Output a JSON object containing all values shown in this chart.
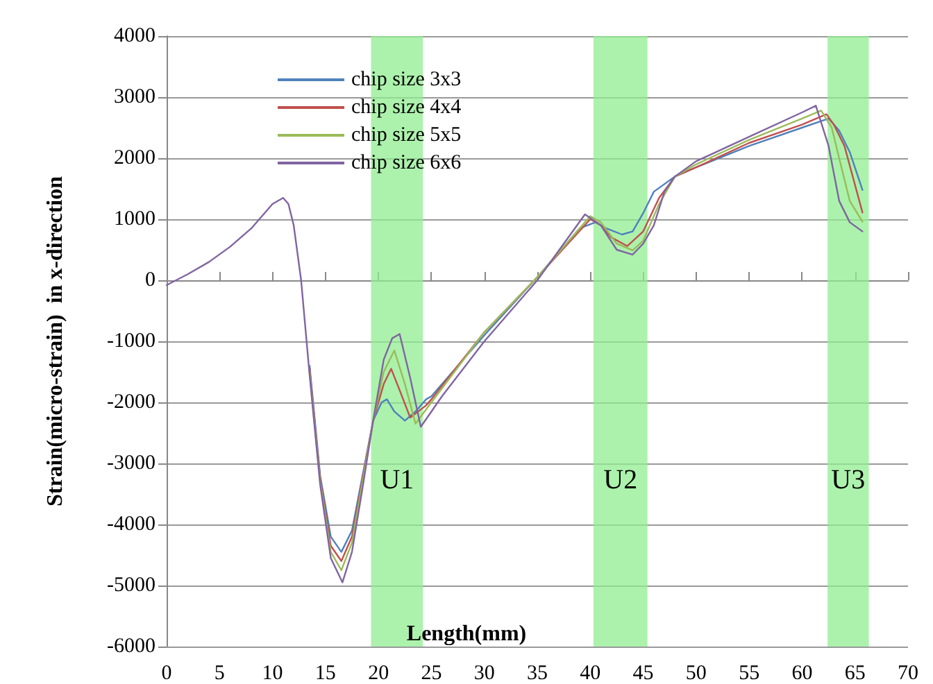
{
  "chart_data": {
    "type": "line",
    "xlabel": "Length(mm)",
    "ylabel": "Strain(micro-strain)  in x-direction",
    "xlim": [
      0,
      70
    ],
    "xticks": [
      0,
      5,
      10,
      15,
      20,
      25,
      30,
      35,
      40,
      45,
      50,
      55,
      60,
      65,
      70
    ],
    "ylim": [
      -6000,
      4000
    ],
    "yticks": [
      -6000,
      -5000,
      -4000,
      -3000,
      -2000,
      -1000,
      0,
      1000,
      2000,
      3000,
      4000
    ],
    "grid": "y",
    "legend": "top left",
    "marker": "none",
    "line_style": "solid",
    "series": [
      {
        "name": "chip size 3x3",
        "color": "#4f81bd",
        "x": [
          13.5,
          14.5,
          15.5,
          16.5,
          17.5,
          18.5,
          19.5,
          20.3,
          20.8,
          21.5,
          22.5,
          23.5,
          24.5,
          25,
          30,
          35,
          39,
          40.5,
          41.5,
          43,
          44,
          45,
          46,
          48,
          50,
          55,
          60,
          62.5,
          63.5,
          64.5,
          65.7
        ],
        "values": [
          -1400,
          -3200,
          -4200,
          -4450,
          -4100,
          -3200,
          -2300,
          -2000,
          -1950,
          -2150,
          -2300,
          -2150,
          -1950,
          -1900,
          -900,
          50,
          850,
          950,
          850,
          750,
          800,
          1100,
          1450,
          1700,
          1850,
          2200,
          2500,
          2650,
          2450,
          2100,
          1480
        ]
      },
      {
        "name": "chip size 4x4",
        "color": "#c0504d",
        "x": [
          13.5,
          14.5,
          15.5,
          16.5,
          17.5,
          18.5,
          19.5,
          20.5,
          21.2,
          22,
          23,
          24.5,
          25,
          30,
          35,
          40,
          41,
          42,
          43.5,
          45,
          46.5,
          48,
          50,
          55,
          60,
          62.3,
          63,
          64,
          65.7
        ],
        "values": [
          -1450,
          -3250,
          -4350,
          -4600,
          -4200,
          -3250,
          -2300,
          -1700,
          -1450,
          -1800,
          -2250,
          -2050,
          -1950,
          -850,
          50,
          1000,
          900,
          700,
          560,
          800,
          1350,
          1700,
          1850,
          2250,
          2550,
          2720,
          2550,
          2200,
          1110
        ]
      },
      {
        "name": "chip size 5x5",
        "color": "#9bbb59",
        "x": [
          13.5,
          14.5,
          15.5,
          16.5,
          17.5,
          18.5,
          19.5,
          20.5,
          21.5,
          22.5,
          23.5,
          25,
          30,
          35,
          40,
          41,
          42.5,
          44,
          45,
          46.5,
          48,
          50,
          55,
          60,
          61.8,
          62.8,
          63.5,
          64.5,
          65.7
        ],
        "values": [
          -1500,
          -3300,
          -4450,
          -4750,
          -4300,
          -3300,
          -2300,
          -1500,
          -1150,
          -1700,
          -2350,
          -2000,
          -850,
          50,
          1050,
          950,
          600,
          490,
          650,
          1250,
          1700,
          1900,
          2300,
          2650,
          2780,
          2500,
          2000,
          1300,
          960
        ]
      },
      {
        "name": "chip size 6x6",
        "color": "#8064a2",
        "x": [
          0,
          2,
          4,
          6,
          8,
          10,
          11,
          11.5,
          12,
          12.7,
          13.5,
          14.5,
          15.5,
          16.6,
          17.5,
          18.5,
          19.5,
          20.5,
          21.3,
          22,
          23,
          24,
          26,
          30,
          35,
          39.5,
          41,
          42.5,
          44,
          45,
          46,
          47,
          48,
          50,
          55,
          60,
          61.3,
          62.5,
          63.5,
          64.5,
          65.7
        ],
        "values": [
          -80,
          100,
          300,
          550,
          850,
          1250,
          1350,
          1250,
          900,
          0,
          -1550,
          -3350,
          -4550,
          -4950,
          -4450,
          -3400,
          -2300,
          -1300,
          -950,
          -880,
          -1600,
          -2400,
          -1900,
          -1000,
          0,
          1080,
          900,
          500,
          420,
          600,
          900,
          1450,
          1700,
          1950,
          2350,
          2750,
          2860,
          2200,
          1300,
          950,
          800
        ]
      }
    ],
    "bands": [
      {
        "axis": "x",
        "from": 19.3,
        "to": 24.2,
        "color": "#90ee90",
        "label": "U1"
      },
      {
        "axis": "x",
        "from": 40.3,
        "to": 45.4,
        "color": "#90ee90",
        "label": "U2"
      },
      {
        "axis": "x",
        "from": 62.4,
        "to": 66.3,
        "color": "#90ee90",
        "label": "U3"
      }
    ]
  }
}
